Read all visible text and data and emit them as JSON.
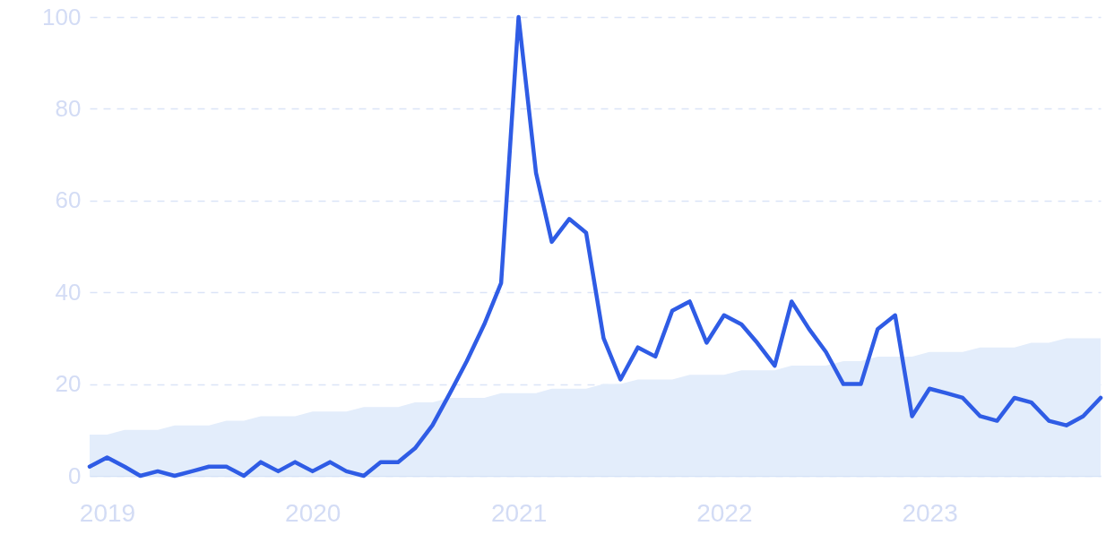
{
  "chart_data": {
    "type": "line",
    "x": [
      "2018-12",
      "2019-01",
      "2019-02",
      "2019-03",
      "2019-04",
      "2019-05",
      "2019-06",
      "2019-07",
      "2019-08",
      "2019-09",
      "2019-10",
      "2019-11",
      "2019-12",
      "2020-01",
      "2020-02",
      "2020-03",
      "2020-04",
      "2020-05",
      "2020-06",
      "2020-07",
      "2020-08",
      "2020-09",
      "2020-10",
      "2020-11",
      "2020-12",
      "2021-01",
      "2021-02",
      "2021-03",
      "2021-04",
      "2021-05",
      "2021-06",
      "2021-07",
      "2021-08",
      "2021-09",
      "2021-10",
      "2021-11",
      "2021-12",
      "2022-01",
      "2022-02",
      "2022-03",
      "2022-04",
      "2022-05",
      "2022-06",
      "2022-07",
      "2022-08",
      "2022-09",
      "2022-10",
      "2022-11",
      "2022-12",
      "2023-01",
      "2023-02",
      "2023-03",
      "2023-04",
      "2023-05",
      "2023-06",
      "2023-07",
      "2023-08",
      "2023-09",
      "2023-10",
      "2023-11"
    ],
    "series": [
      {
        "type": "area",
        "color": "#e3edfb",
        "values": [
          9,
          9,
          10,
          10,
          10,
          11,
          11,
          11,
          12,
          12,
          13,
          13,
          13,
          14,
          14,
          14,
          15,
          15,
          15,
          16,
          16,
          17,
          17,
          17,
          18,
          18,
          18,
          19,
          19,
          19,
          20,
          20,
          21,
          21,
          21,
          22,
          22,
          22,
          23,
          23,
          23,
          24,
          24,
          24,
          25,
          25,
          26,
          26,
          26,
          27,
          27,
          27,
          28,
          28,
          28,
          29,
          29,
          30,
          30,
          30
        ]
      },
      {
        "type": "line",
        "color": "#2f5ce5",
        "values": [
          2,
          4,
          2,
          0,
          1,
          0,
          1,
          2,
          2,
          0,
          3,
          1,
          3,
          1,
          3,
          1,
          0,
          3,
          3,
          6,
          11,
          18,
          25,
          33,
          42,
          100,
          66,
          51,
          56,
          53,
          30,
          21,
          28,
          26,
          36,
          38,
          29,
          35,
          33,
          29,
          24,
          38,
          32,
          27,
          20,
          20,
          32,
          35,
          13,
          19,
          18,
          17,
          13,
          12,
          17,
          16,
          12,
          11,
          13,
          17
        ]
      }
    ],
    "xlim": [
      "2018-12",
      "2023-11"
    ],
    "xticks": [
      "2019",
      "2020",
      "2021",
      "2022",
      "2023"
    ],
    "ylim": [
      0,
      100
    ],
    "yticks": [
      0,
      20,
      40,
      60,
      80,
      100
    ],
    "grid": "y",
    "line_style": "solid",
    "marker": "none"
  }
}
